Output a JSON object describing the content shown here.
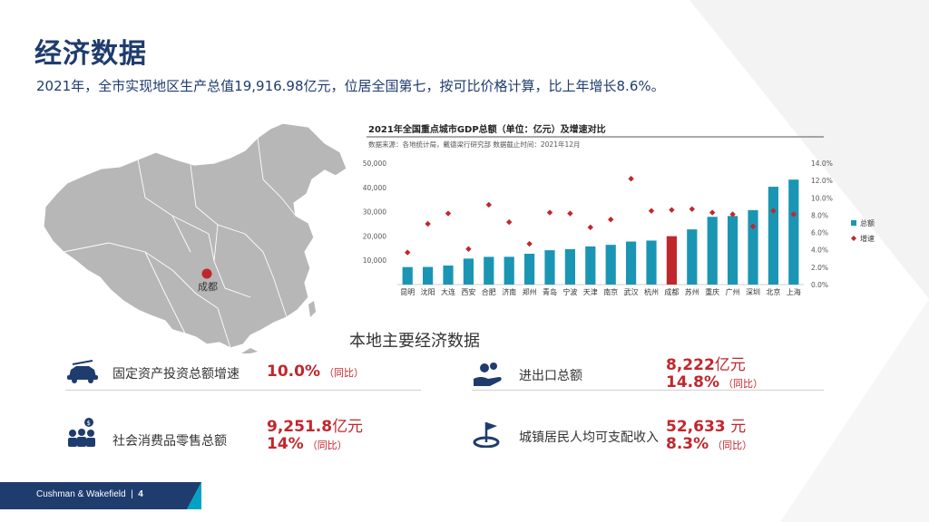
{
  "page": {
    "title": "经济数据",
    "subtitle": "2021年，全市实现地区生产总值19,916.98亿元，位居全国第七，按可比价格计算，比上年增长8.6%。"
  },
  "map": {
    "city_label": "成都"
  },
  "chart_data": {
    "type": "bar",
    "title": "2021年全国重点城市GDP总额（单位：亿元）及增速对比",
    "source": "数据来源：各地统计局，戴德梁行研究部 数据截止时间：2021年12月",
    "categories": [
      "昆明",
      "沈阳",
      "大连",
      "西安",
      "合肥",
      "济南",
      "郑州",
      "青岛",
      "宁波",
      "天津",
      "南京",
      "武汉",
      "杭州",
      "成都",
      "苏州",
      "重庆",
      "广州",
      "深圳",
      "北京",
      "上海"
    ],
    "series": [
      {
        "name": "总额",
        "type": "bar",
        "axis": "left",
        "values": [
          7200,
          7250,
          7830,
          10690,
          11410,
          11430,
          12690,
          14140,
          14590,
          15700,
          16360,
          17720,
          18110,
          19917,
          22720,
          27890,
          28230,
          30660,
          40270,
          43210
        ]
      },
      {
        "name": "增速",
        "type": "scatter",
        "axis": "right",
        "values": [
          3.7,
          7.0,
          8.2,
          4.1,
          9.2,
          7.2,
          4.7,
          8.3,
          8.2,
          6.6,
          7.5,
          12.2,
          8.5,
          8.6,
          8.7,
          8.3,
          8.1,
          6.7,
          8.5,
          8.1
        ]
      }
    ],
    "highlight_category": "成都",
    "y_left": {
      "ticks": [
        "10,000",
        "20,000",
        "30,000",
        "40,000",
        "50,000"
      ],
      "range": [
        0,
        50000
      ]
    },
    "y_right": {
      "ticks": [
        "0.0%",
        "2.0%",
        "4.0%",
        "6.0%",
        "8.0%",
        "10.0%",
        "12.0%",
        "14.0%"
      ],
      "range": [
        0,
        14
      ]
    },
    "legend_position": "right",
    "colors": {
      "bar": "#1a96b4",
      "highlight": "#c0272d",
      "marker": "#c0272d"
    }
  },
  "section_title": "本地主要经济数据",
  "stats": [
    {
      "label": "固定资产投资总额增速",
      "value": "10.0%",
      "note": "（同比）",
      "icon": "car-tools-icon"
    },
    {
      "label": "进出口总额",
      "value_num": "8,222",
      "value_unit": "亿元",
      "value2": "14.8%",
      "note": "（同比）",
      "icon": "hand-coins-icon"
    },
    {
      "label": "社会消费品零售总额",
      "value_num": "9,251.8",
      "value_unit": "亿元",
      "value2": "14%",
      "note": "（同比）",
      "icon": "people-dollar-icon"
    },
    {
      "label": "城镇居民人均可支配收入",
      "value_num": "52,633",
      "value_unit": "元",
      "value2": "8.3%",
      "note": "（同比）",
      "icon": "flag-icon"
    }
  ],
  "footer": {
    "brand": "Cushman & Wakefield",
    "page_number": "4"
  },
  "colors": {
    "navy": "#1f3c6e",
    "red": "#c0272d",
    "gray_map": "#b3b3b3"
  }
}
